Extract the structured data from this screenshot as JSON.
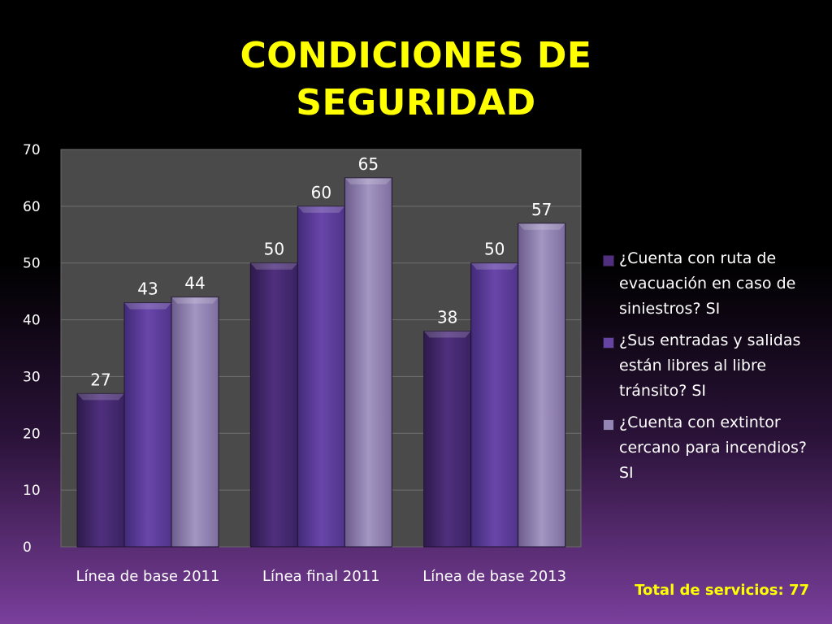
{
  "title": {
    "line1": "CONDICIONES DE",
    "line2": "SEGURIDAD"
  },
  "chart_data": {
    "type": "bar",
    "categories": [
      "Línea de base 2011",
      "Línea final 2011",
      "Línea de base 2013"
    ],
    "series": [
      {
        "name": "¿Cuenta con ruta de evacuación en caso de siniestros? SI",
        "values": [
          27,
          50,
          38
        ],
        "color": "#4f2f7e"
      },
      {
        "name": "¿Sus entradas y salidas están libres al libre tránsito? SI",
        "values": [
          43,
          60,
          50
        ],
        "color": "#6644a4"
      },
      {
        "name": "¿Cuenta con extintor cercano para incendios? SI",
        "values": [
          44,
          65,
          57
        ],
        "color": "#9485b4"
      }
    ],
    "ylim": [
      0,
      70
    ],
    "yticks": [
      "0",
      "10",
      "20",
      "30",
      "40",
      "50",
      "60",
      "70"
    ],
    "grid": true,
    "legend_position": "right",
    "plot_background": "#4a4a4a"
  },
  "legend": {
    "items": [
      "¿Cuenta con ruta de evacuación en caso de siniestros? SI",
      "¿Sus entradas y salidas están libres al libre tránsito? SI",
      "¿Cuenta con extintor cercano para incendios? SI"
    ]
  },
  "footer": {
    "total_label": "Total de servicios: 77"
  }
}
